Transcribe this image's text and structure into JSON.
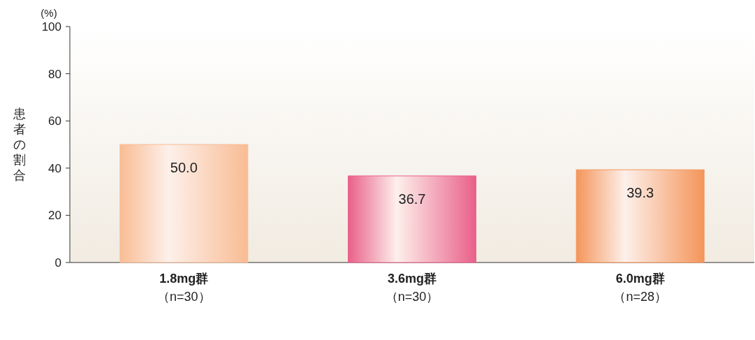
{
  "chart_data": {
    "type": "bar",
    "ylabel": "患者の割合",
    "annotations": [
      "(%)"
    ],
    "categories": [
      "1.8mg群（n=30）",
      "3.6mg群（n=30）",
      "6.0mg群（n=28）"
    ],
    "values": [
      50.0,
      36.7,
      39.3
    ],
    "value_labels": [
      "50.0",
      "36.7",
      "39.3"
    ],
    "colors": [
      "#f9bc94",
      "#e9608a",
      "#f4955a"
    ],
    "ylim": [
      0,
      100
    ],
    "yticks": [
      0,
      20,
      40,
      60,
      80,
      100
    ]
  }
}
